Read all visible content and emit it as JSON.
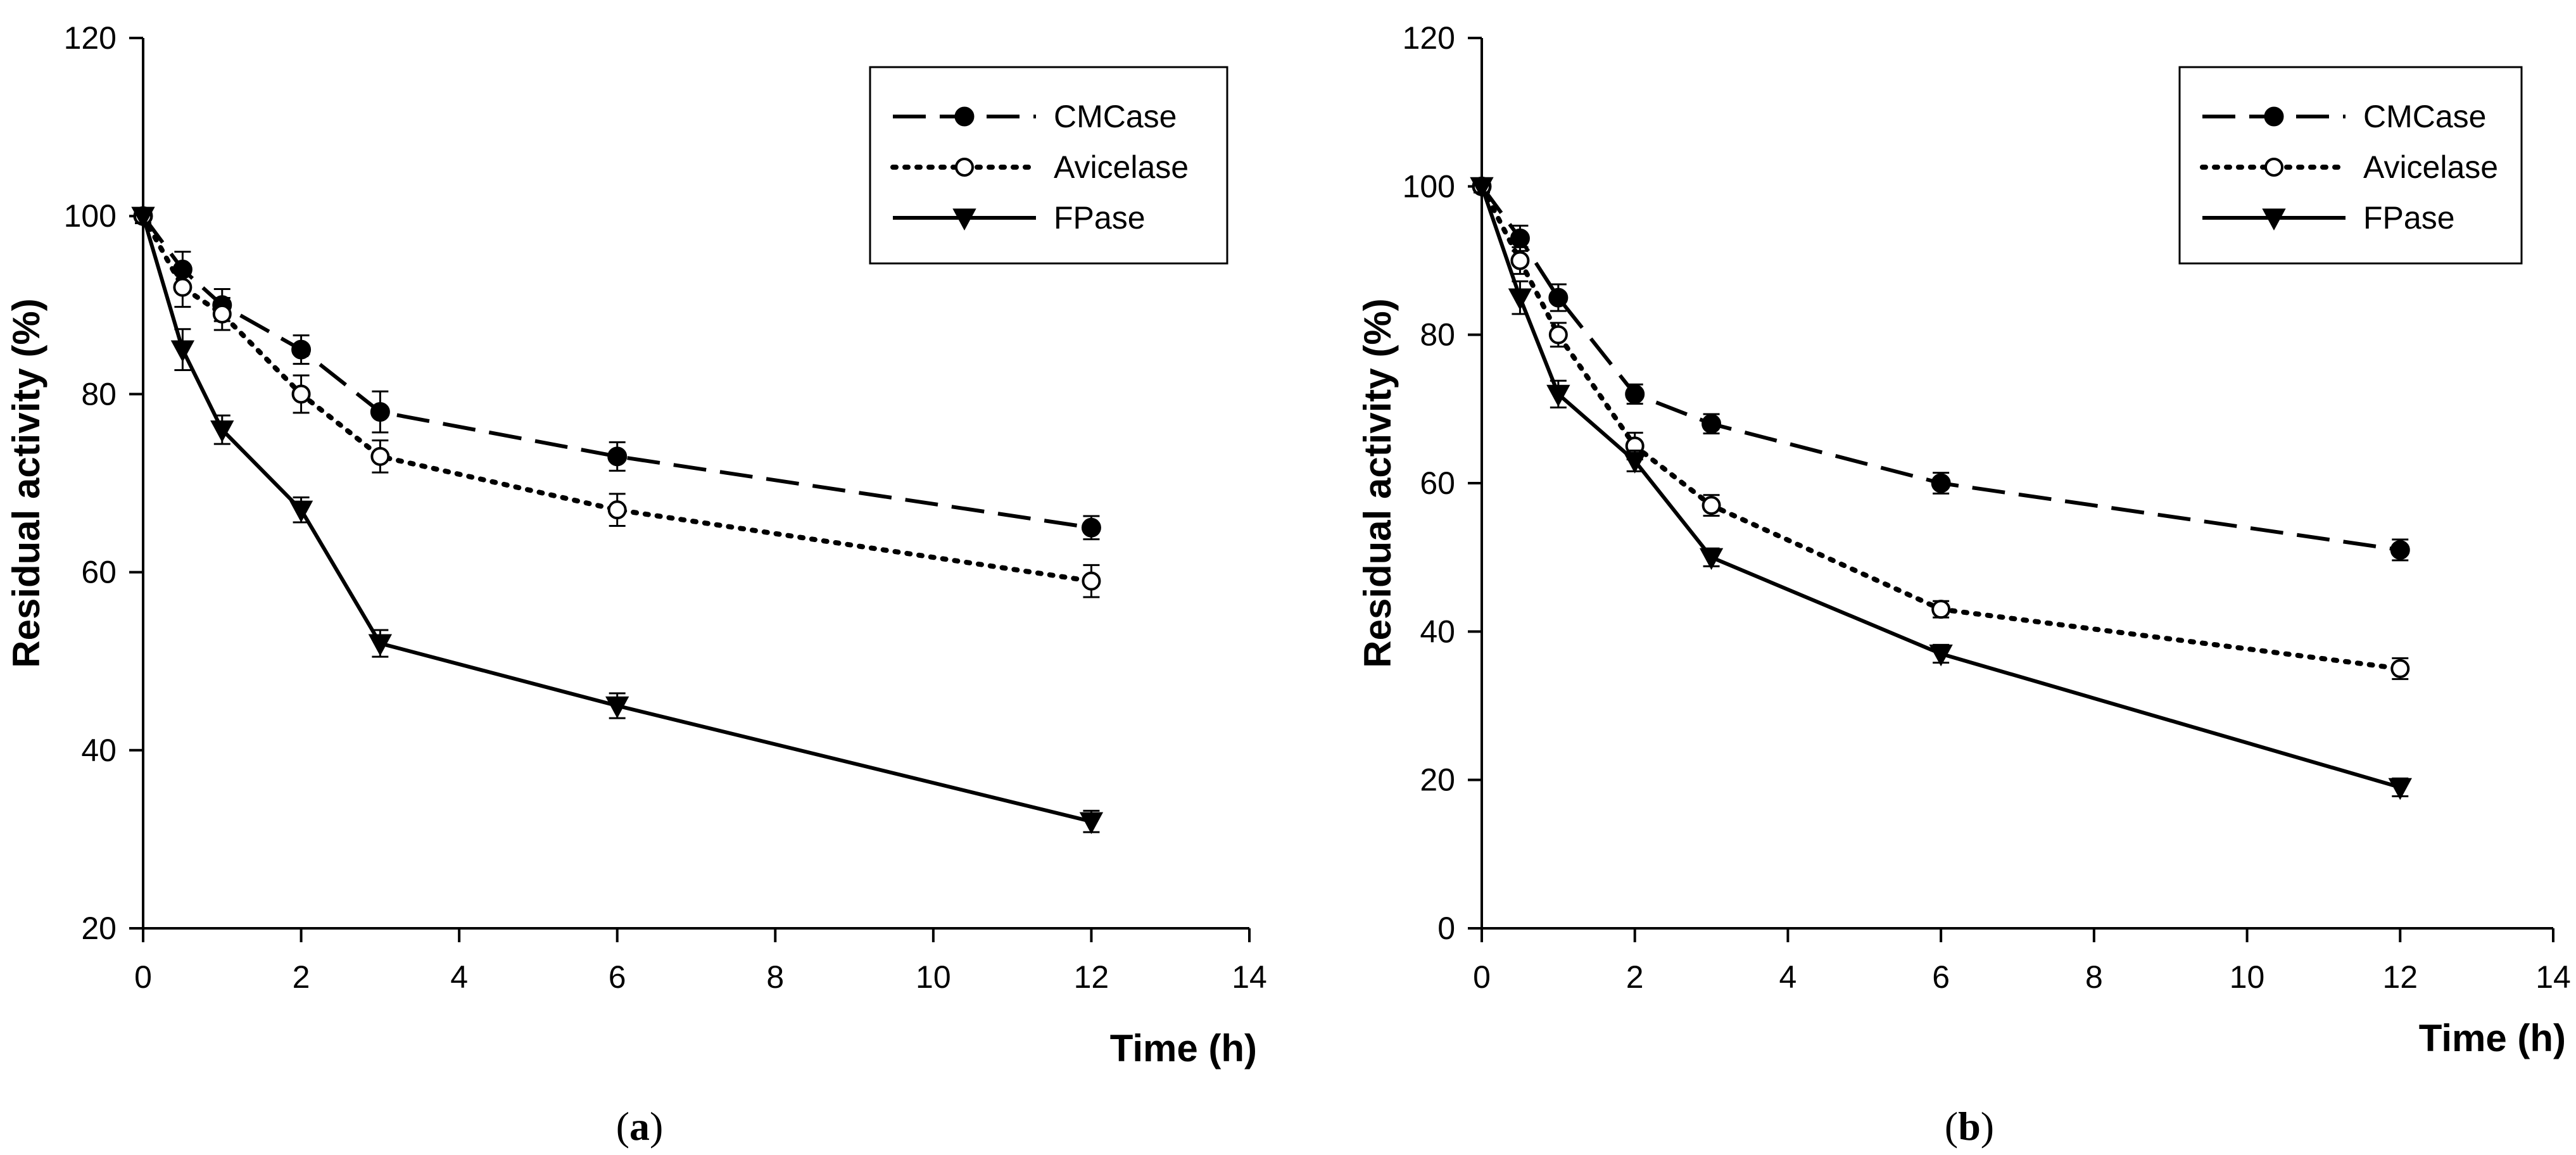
{
  "figure": {
    "colors": {
      "ink": "#000000",
      "background": "#ffffff"
    }
  },
  "chart_data": [
    {
      "type": "line",
      "panel_label": "a",
      "title": "",
      "xlabel": "Time (h)",
      "ylabel": "Residual activity (%)",
      "xlim": [
        0,
        14
      ],
      "ylim": [
        20,
        120
      ],
      "xticks": [
        "0",
        "2",
        "4",
        "6",
        "8",
        "10",
        "12",
        "14"
      ],
      "yticks": [
        "20",
        "40",
        "60",
        "80",
        "100",
        "120"
      ],
      "x": [
        0,
        0.5,
        1,
        2,
        3,
        6,
        12
      ],
      "grid": false,
      "legend_position": "top-right",
      "series": [
        {
          "name": "CMCase",
          "marker": "filled-circle",
          "line": "dashed",
          "values": [
            100,
            94,
            90,
            85,
            78,
            73,
            65
          ],
          "errors": [
            0.8,
            2,
            1.8,
            1.6,
            2.3,
            1.6,
            1.3
          ]
        },
        {
          "name": "Avicelase",
          "marker": "open-circle",
          "line": "dotted",
          "values": [
            100,
            92,
            89,
            80,
            73,
            67,
            59
          ],
          "errors": [
            0.8,
            2.2,
            1.8,
            2.1,
            1.8,
            1.8,
            1.8
          ]
        },
        {
          "name": "FPase",
          "marker": "filled-triangle-down",
          "line": "solid",
          "values": [
            100,
            85,
            76,
            67,
            52,
            45,
            32
          ],
          "errors": [
            0.8,
            2.3,
            1.6,
            1.4,
            1.5,
            1.4,
            1.2
          ]
        }
      ]
    },
    {
      "type": "line",
      "panel_label": "b",
      "title": "",
      "xlabel": "Time (h)",
      "ylabel": "Residual activity (%)",
      "xlim": [
        0,
        14
      ],
      "ylim": [
        0,
        120
      ],
      "xticks": [
        "0",
        "2",
        "4",
        "6",
        "8",
        "10",
        "12",
        "14"
      ],
      "yticks": [
        "0",
        "20",
        "40",
        "60",
        "80",
        "100",
        "120"
      ],
      "x": [
        0,
        0.5,
        1,
        2,
        3,
        6,
        12
      ],
      "grid": false,
      "legend_position": "top-right",
      "series": [
        {
          "name": "CMCase",
          "marker": "filled-circle",
          "line": "dashed",
          "values": [
            100,
            93,
            85,
            72,
            68,
            60,
            51
          ],
          "errors": [
            0.8,
            1.7,
            1.8,
            1.3,
            1.3,
            1.4,
            1.4
          ]
        },
        {
          "name": "Avicelase",
          "marker": "open-circle",
          "line": "dotted",
          "values": [
            100,
            90,
            80,
            65,
            57,
            43,
            35
          ],
          "errors": [
            0.8,
            1.8,
            1.6,
            1.8,
            1.4,
            1.1,
            1.4
          ]
        },
        {
          "name": "FPase",
          "marker": "filled-triangle-down",
          "line": "solid",
          "values": [
            100,
            85,
            72,
            63,
            50,
            37,
            19
          ],
          "errors": [
            0.8,
            2.2,
            1.8,
            1.4,
            1.2,
            1.2,
            1.2
          ]
        }
      ]
    }
  ]
}
